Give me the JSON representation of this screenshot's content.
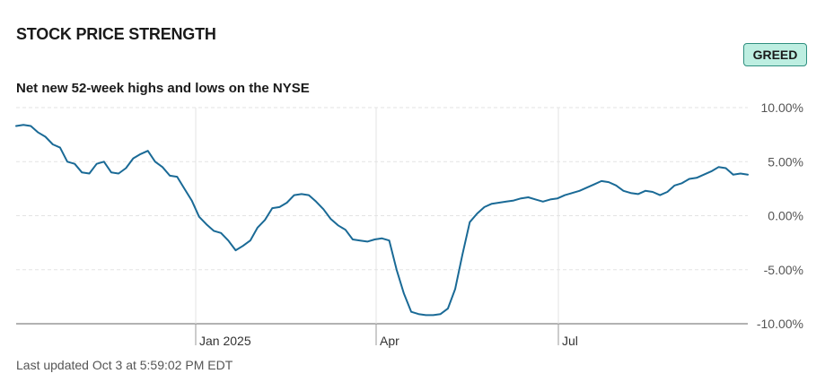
{
  "header": {
    "title": "STOCK PRICE STRENGTH",
    "badge": "GREED",
    "subtitle": "Net new 52-week highs and lows on the NYSE"
  },
  "footer": {
    "updated": "Last updated Oct 3 at 5:59:02 PM EDT"
  },
  "colors": {
    "line": "#1a6a96",
    "badge_bg": "#bdeee1",
    "badge_border": "#2f8f7f",
    "grid": "#e3e3e3"
  },
  "chart_data": {
    "type": "line",
    "title": "Net new 52-week highs and lows on the NYSE",
    "y_ticks": [
      "10.00%",
      "5.00%",
      "0.00%",
      "-5.00%",
      "-10.00%"
    ],
    "y_tick_values": [
      10,
      5,
      0,
      -5,
      -10
    ],
    "ylim": [
      -10,
      10
    ],
    "x_ticks": [
      "Jan 2025",
      "Apr",
      "Jul"
    ],
    "grid": "dashed horizontal, solid vertical",
    "series": [
      {
        "values": [
          8.3,
          8.4,
          8.3,
          7.7,
          7.3,
          6.6,
          6.3,
          5.0,
          4.8,
          4.0,
          3.9,
          4.8,
          5.0,
          4.0,
          3.9,
          4.4,
          5.3,
          5.7,
          6.0,
          5.0,
          4.5,
          3.7,
          3.6,
          2.5,
          1.4,
          -0.1,
          -0.8,
          -1.4,
          -1.6,
          -2.3,
          -3.2,
          -2.8,
          -2.3,
          -1.1,
          -0.4,
          0.7,
          0.8,
          1.2,
          1.9,
          2.0,
          1.9,
          1.3,
          0.6,
          -0.3,
          -0.9,
          -1.3,
          -2.2,
          -2.3,
          -2.4,
          -2.2,
          -2.1,
          -2.3,
          -5.0,
          -7.2,
          -8.9,
          -9.1,
          -9.2,
          -9.2,
          -9.1,
          -8.6,
          -6.8,
          -3.6,
          -0.6,
          0.2,
          0.8,
          1.1,
          1.2,
          1.3,
          1.4,
          1.6,
          1.7,
          1.5,
          1.3,
          1.5,
          1.6,
          1.9,
          2.1,
          2.3,
          2.6,
          2.9,
          3.2,
          3.1,
          2.8,
          2.3,
          2.1,
          2.0,
          2.3,
          2.2,
          1.9,
          2.2,
          2.8,
          3.0,
          3.4,
          3.5,
          3.8,
          4.1,
          4.5,
          4.4,
          3.8,
          3.9,
          3.8
        ]
      }
    ]
  }
}
